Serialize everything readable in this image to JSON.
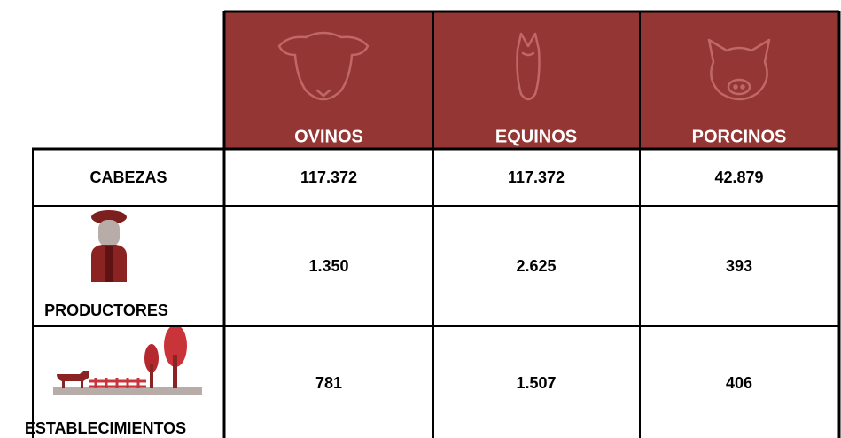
{
  "table": {
    "columns": [
      "OVINOS",
      "EQUINOS",
      "PORCINOS"
    ],
    "rows": [
      {
        "label": "CABEZAS",
        "values": [
          "117.372",
          "117.372",
          "42.879"
        ]
      },
      {
        "label": "PRODUCTORES",
        "values": [
          "1.350",
          "2.625",
          "393"
        ]
      },
      {
        "label": "ESTABLECIMIENTOS",
        "values": [
          "781",
          "1.507",
          "406"
        ]
      }
    ]
  }
}
